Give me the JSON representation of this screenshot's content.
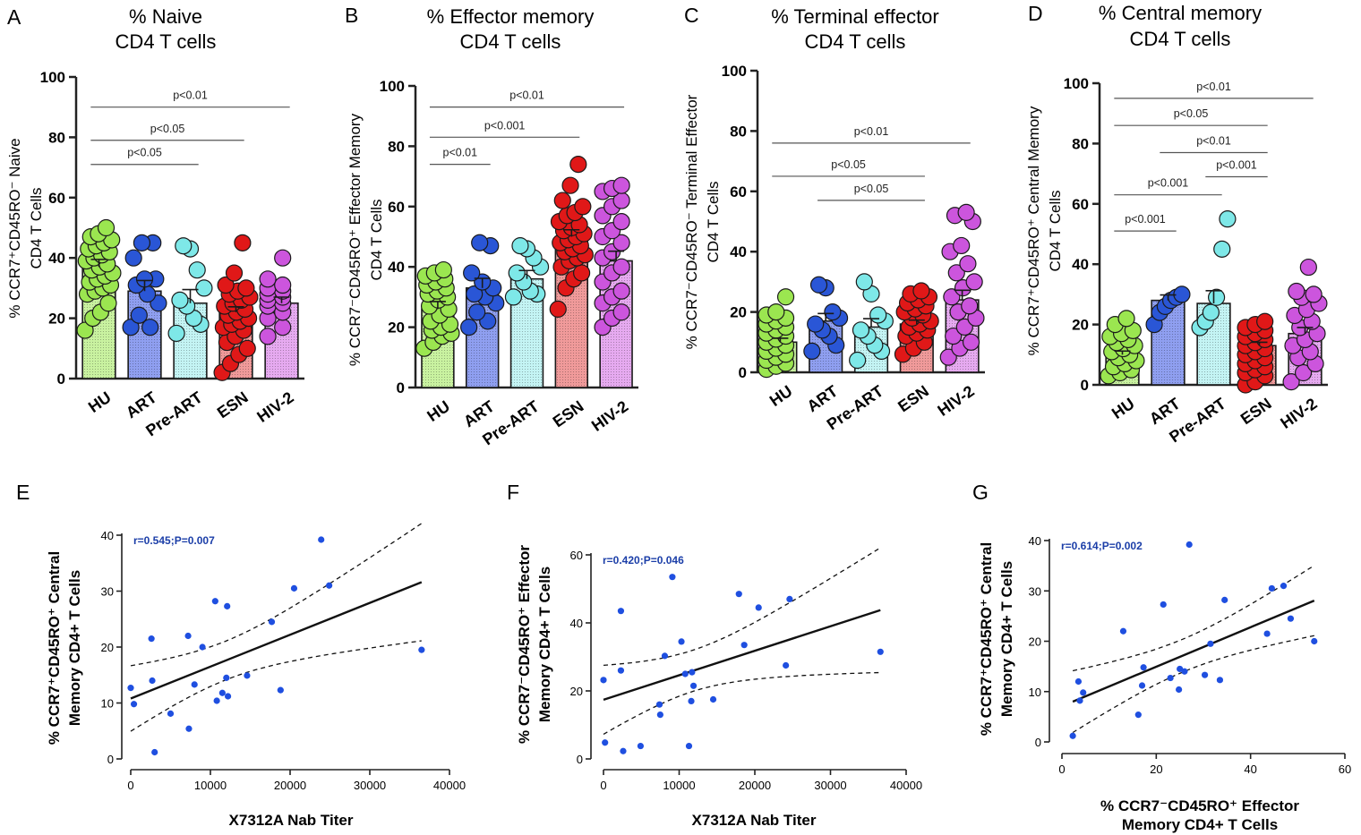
{
  "groups": [
    "HU",
    "ART",
    "Pre-ART",
    "ESN",
    "HIV-2"
  ],
  "colors": {
    "HU": "#9be650",
    "ART": "#2a56d6",
    "Pre-ART": "#7ee8e8",
    "ESN": "#e01818",
    "HIV-2": "#cc55dd",
    "HU_bar": "#c9f2a0",
    "ART_bar": "#8f9ff0",
    "Pre-ART_bar": "#c4f4f4",
    "ESN_bar": "#f09a9a",
    "HIV-2_bar": "#e6aaf0",
    "scatter_point": "#1f4fe0",
    "stat_text": "#1b3ea8",
    "axis": "#222222"
  },
  "chart_data": [
    {
      "panel": "A",
      "type": "bar",
      "title_line1": "%  Naive",
      "title_line2": "CD4 T cells",
      "ylabel_line1": "% CCR7⁺CD45RO⁻ Naive",
      "ylabel_line2": "CD4 T Cells",
      "ylim": [
        0,
        100
      ],
      "yticks": [
        "0",
        "20",
        "40",
        "60",
        "80",
        "100"
      ],
      "categories": [
        "HU",
        "ART",
        "Pre-ART",
        "ESN",
        "HIV-2"
      ],
      "means": [
        37,
        29,
        25,
        22,
        25
      ],
      "sem": [
        2.5,
        3.5,
        4.5,
        1.8,
        2.0
      ],
      "points": [
        [
          16,
          20,
          22,
          25,
          28,
          29,
          30,
          31,
          32,
          33,
          34,
          35,
          36,
          37,
          38,
          39,
          40,
          41,
          42,
          43,
          44,
          45,
          46,
          47,
          48,
          50
        ],
        [
          17,
          17,
          21,
          25,
          28,
          31,
          33,
          33,
          40,
          45,
          45
        ],
        [
          15,
          18,
          20,
          24,
          26,
          30,
          36,
          43,
          44
        ],
        [
          2,
          5,
          8,
          10,
          12,
          14,
          16,
          17,
          18,
          19,
          20,
          21,
          22,
          23,
          24,
          25,
          26,
          27,
          28,
          29,
          30,
          31,
          35,
          45
        ],
        [
          14,
          17,
          20,
          22,
          24,
          25,
          26,
          27,
          28,
          29,
          30,
          31,
          33,
          40
        ]
      ],
      "comparisons": [
        {
          "from": 0,
          "to": 2,
          "label": "p<0.05",
          "y": 71
        },
        {
          "from": 0,
          "to": 3,
          "label": "p<0.05",
          "y": 79
        },
        {
          "from": 0,
          "to": 4,
          "label": "p<0.01",
          "y": 90
        }
      ]
    },
    {
      "panel": "B",
      "type": "bar",
      "title_line1": "% Effector memory",
      "title_line2": "CD4 T cells",
      "ylabel_line1": "% CCR7⁻CD45RO⁺ Effector Memory",
      "ylabel_line2": "CD4 T Cells",
      "ylim": [
        0,
        100
      ],
      "yticks": [
        "0",
        "20",
        "40",
        "60",
        "80",
        "100"
      ],
      "categories": [
        "HU",
        "ART",
        "Pre-ART",
        "ESN",
        "HIV-2"
      ],
      "means": [
        26,
        33,
        36,
        50,
        42
      ],
      "sem": [
        2.5,
        3.2,
        2.8,
        2.3,
        3.2
      ],
      "points": [
        [
          13,
          15,
          17,
          18,
          19,
          20,
          21,
          22,
          24,
          26,
          27,
          29,
          30,
          31,
          32,
          33,
          34,
          35,
          36,
          37,
          38,
          39
        ],
        [
          20,
          22,
          25,
          28,
          30,
          31,
          33,
          35,
          38,
          47,
          48
        ],
        [
          30,
          31,
          32,
          35,
          38,
          40,
          43,
          46,
          47
        ],
        [
          26,
          33,
          36,
          38,
          40,
          42,
          43,
          44,
          45,
          46,
          47,
          48,
          49,
          50,
          51,
          52,
          53,
          54,
          55,
          57,
          58,
          60,
          62,
          67,
          74
        ],
        [
          20,
          23,
          25,
          28,
          30,
          32,
          35,
          38,
          40,
          43,
          45,
          48,
          50,
          52,
          55,
          57,
          60,
          62,
          65,
          66,
          67
        ]
      ],
      "comparisons": [
        {
          "from": 0,
          "to": 1,
          "label": "p<0.01",
          "y": 74
        },
        {
          "from": 0,
          "to": 3,
          "label": "p<0.001",
          "y": 83
        },
        {
          "from": 0,
          "to": 4,
          "label": "p<0.01",
          "y": 93
        }
      ]
    },
    {
      "panel": "C",
      "type": "bar",
      "title_line1": "% Terminal effector",
      "title_line2": "CD4 T cells",
      "ylabel_line1": "% CCR7⁻CD45RO⁻ Terminal Effector",
      "ylabel_line2": "CD4 T Cells",
      "ylim": [
        0,
        100
      ],
      "yticks": [
        "0",
        "20",
        "40",
        "60",
        "80",
        "100"
      ],
      "categories": [
        "HU",
        "ART",
        "Pre-ART",
        "ESN",
        "HIV-2"
      ],
      "means": [
        10,
        17,
        15,
        16,
        24
      ],
      "sem": [
        1.3,
        2.5,
        2.8,
        1.3,
        3.2
      ],
      "points": [
        [
          1,
          2,
          3,
          4,
          5,
          6,
          7,
          8,
          9,
          10,
          11,
          12,
          13,
          14,
          15,
          16,
          17,
          18,
          19,
          20,
          25
        ],
        [
          7,
          9,
          12,
          14,
          16,
          18,
          20,
          28,
          29
        ],
        [
          4,
          7,
          9,
          12,
          14,
          17,
          19,
          26,
          30
        ],
        [
          6,
          8,
          10,
          12,
          13,
          14,
          15,
          16,
          17,
          18,
          19,
          20,
          21,
          22,
          23,
          24,
          25,
          26,
          27
        ],
        [
          5,
          8,
          10,
          12,
          15,
          18,
          20,
          22,
          25,
          28,
          30,
          33,
          36,
          40,
          42,
          50,
          52,
          53
        ]
      ],
      "comparisons": [
        {
          "from": 1,
          "to": 3,
          "label": "p<0.05",
          "y": 57
        },
        {
          "from": 0,
          "to": 3,
          "label": "p<0.05",
          "y": 65
        },
        {
          "from": 0,
          "to": 4,
          "label": "p<0.01",
          "y": 76
        }
      ]
    },
    {
      "panel": "D",
      "type": "bar",
      "title_line1": "% Central memory",
      "title_line2": "CD4 T cells",
      "ylabel_line1": "% CCR7⁺CD45RO⁺ Central Memory",
      "ylabel_line2": "CD4 T Cells",
      "ylim": [
        0,
        100
      ],
      "yticks": [
        "0",
        "20",
        "40",
        "60",
        "80",
        "100"
      ],
      "categories": [
        "HU",
        "ART",
        "Pre-ART",
        "ESN",
        "HIV-2"
      ],
      "means": [
        10,
        28,
        27,
        13,
        17
      ],
      "sem": [
        1.2,
        1.8,
        4.2,
        1.1,
        2.0
      ],
      "points": [
        [
          3,
          4,
          5,
          6,
          7,
          8,
          9,
          10,
          11,
          12,
          13,
          14,
          15,
          16,
          17,
          18,
          20,
          22
        ],
        [
          20,
          24,
          26,
          28,
          29,
          30
        ],
        [
          19,
          21,
          24,
          29,
          45,
          55
        ],
        [
          0,
          1,
          3,
          4,
          5,
          6,
          7,
          8,
          9,
          10,
          11,
          12,
          13,
          14,
          15,
          16,
          17,
          18,
          19,
          20,
          21
        ],
        [
          1,
          4,
          7,
          9,
          11,
          13,
          15,
          17,
          19,
          21,
          23,
          25,
          27,
          29,
          30,
          31,
          39
        ]
      ],
      "comparisons": [
        {
          "from": 0,
          "to": 1,
          "label": "p<0.001",
          "y": 51
        },
        {
          "from": 0,
          "to": 2,
          "label": "p<0.001",
          "y": 63
        },
        {
          "from": 2,
          "to": 3,
          "label": "p<0.001",
          "y": 69
        },
        {
          "from": 1,
          "to": 3,
          "label": "p<0.01",
          "y": 77
        },
        {
          "from": 0,
          "to": 3,
          "label": "p<0.05",
          "y": 86
        },
        {
          "from": 0,
          "to": 4,
          "label": "p<0.01",
          "y": 95
        }
      ]
    },
    {
      "panel": "E",
      "type": "scatter",
      "ylabel_line1": "% CCR7⁺CD45RO⁺ Central",
      "ylabel_line2": "Memory CD4+ T Cells",
      "xlabel": "X7312A Nab Titer",
      "xlim": [
        0,
        40000
      ],
      "ylim": [
        0,
        40
      ],
      "xticks": [
        "0",
        "10000",
        "20000",
        "30000",
        "40000"
      ],
      "yticks": [
        "0",
        "10",
        "20",
        "30",
        "40"
      ],
      "stat": "r=0.545;P=0.007",
      "regression": [
        10.8,
        0.00057
      ],
      "points": [
        [
          0,
          12.7
        ],
        [
          400,
          9.8
        ],
        [
          2600,
          21.5
        ],
        [
          2700,
          14
        ],
        [
          3000,
          1.2
        ],
        [
          5000,
          8.1
        ],
        [
          7200,
          22
        ],
        [
          7300,
          5.4
        ],
        [
          8000,
          13.3
        ],
        [
          9000,
          20
        ],
        [
          10600,
          28.2
        ],
        [
          10800,
          10.4
        ],
        [
          11500,
          11.8
        ],
        [
          12000,
          14.5
        ],
        [
          12100,
          27.3
        ],
        [
          12200,
          11.2
        ],
        [
          14600,
          14.9
        ],
        [
          17700,
          24.5
        ],
        [
          18800,
          12.3
        ],
        [
          20500,
          30.5
        ],
        [
          23900,
          39.2
        ],
        [
          24900,
          31
        ],
        [
          36500,
          19.5
        ]
      ]
    },
    {
      "panel": "F",
      "type": "scatter",
      "ylabel_line1": "% CCR7⁻CD45RO⁺ Effector",
      "ylabel_line2": "Memory CD4+ T Cells",
      "xlabel": "X7312A Nab Titer",
      "xlim": [
        0,
        40000
      ],
      "ylim": [
        0,
        60
      ],
      "xticks": [
        "0",
        "10000",
        "20000",
        "30000",
        "40000"
      ],
      "yticks": [
        "0",
        "20",
        "40",
        "60"
      ],
      "stat": "r=0.420;P=0.046",
      "regression": [
        17.4,
        0.00072
      ],
      "points": [
        [
          0,
          23.2
        ],
        [
          200,
          4.8
        ],
        [
          2300,
          26
        ],
        [
          2300,
          43.5
        ],
        [
          2600,
          2.3
        ],
        [
          4900,
          3.8
        ],
        [
          7400,
          16
        ],
        [
          7500,
          13
        ],
        [
          8100,
          30.3
        ],
        [
          9100,
          53.5
        ],
        [
          10300,
          34.5
        ],
        [
          10800,
          25
        ],
        [
          11300,
          3.8
        ],
        [
          11600,
          17
        ],
        [
          11700,
          25.5
        ],
        [
          11900,
          21.5
        ],
        [
          14500,
          17.5
        ],
        [
          17900,
          48.5
        ],
        [
          18600,
          33.5
        ],
        [
          20500,
          44.5
        ],
        [
          24100,
          27.5
        ],
        [
          24600,
          47
        ],
        [
          36600,
          31.5
        ]
      ]
    },
    {
      "panel": "G",
      "type": "scatter",
      "ylabel_line1": "% CCR7⁺CD45RO⁺ Central",
      "ylabel_line2": "Memory CD4+ T Cells",
      "xlabel_line1": "% CCR7⁻CD45RO⁺ Effector",
      "xlabel_line2": "Memory CD4+ T Cells",
      "xlim": [
        0,
        60
      ],
      "ylim": [
        0,
        40
      ],
      "xticks": [
        "0",
        "20",
        "40",
        "60"
      ],
      "yticks": [
        "0",
        "10",
        "20",
        "30",
        "40"
      ],
      "stat": "r=0.614;P=0.002",
      "regression": [
        7.1,
        0.392
      ],
      "points": [
        [
          2.3,
          1.2
        ],
        [
          3.5,
          12
        ],
        [
          3.8,
          8.2
        ],
        [
          4.5,
          9.8
        ],
        [
          13,
          22
        ],
        [
          16.2,
          5.4
        ],
        [
          17,
          11.2
        ],
        [
          17.3,
          14.8
        ],
        [
          21.5,
          27.3
        ],
        [
          23,
          12.7
        ],
        [
          24.8,
          10.4
        ],
        [
          25,
          14.5
        ],
        [
          26,
          14
        ],
        [
          27,
          39.2
        ],
        [
          30.3,
          13.3
        ],
        [
          31.5,
          19.5
        ],
        [
          33.5,
          12.3
        ],
        [
          34.5,
          28.2
        ],
        [
          43.5,
          21.5
        ],
        [
          44.5,
          30.5
        ],
        [
          47,
          31
        ],
        [
          48.5,
          24.5
        ],
        [
          53.5,
          20
        ]
      ]
    }
  ]
}
